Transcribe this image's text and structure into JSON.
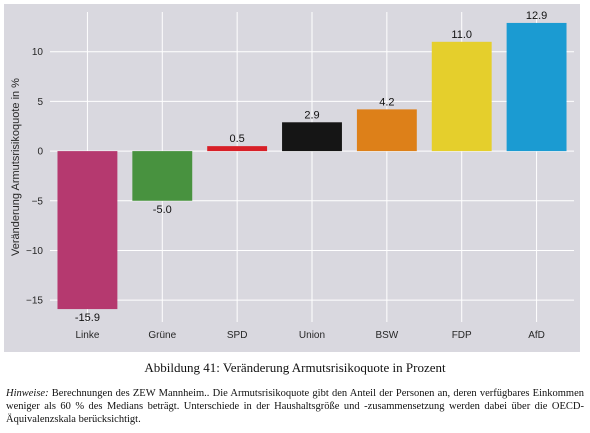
{
  "chart_data": {
    "type": "bar",
    "categories": [
      "Linke",
      "Grüne",
      "SPD",
      "Union",
      "BSW",
      "FDP",
      "AfD"
    ],
    "values": [
      -15.9,
      -5.0,
      0.5,
      2.9,
      4.2,
      11.0,
      12.9
    ],
    "value_labels": [
      "-15.9",
      "-5.0",
      "0.5",
      "2.9",
      "4.2",
      "11.0",
      "12.9"
    ],
    "colors": [
      "#b5396f",
      "#48923f",
      "#d81f27",
      "#151515",
      "#dd8019",
      "#e5cf2c",
      "#1b9bd2"
    ],
    "title": "",
    "xlabel": "",
    "ylabel": "Veränderung Armutsrisikoquote in %",
    "ylim": [
      -17.2,
      14.0
    ],
    "yticks": [
      -15,
      -10,
      -5,
      0,
      5,
      10
    ],
    "ytick_labels": [
      "−15",
      "−10",
      "−5",
      "0",
      "5",
      "10"
    ],
    "grid": true
  },
  "caption": "Abbildung 41: Veränderung Armutsrisikoquote in Prozent",
  "note": {
    "lead": "Hinweise:",
    "text": " Berechnungen des ZEW Mannheim.. Die Armutsrisikoquote gibt den Anteil der Personen an, deren verfügbares Einkommen weniger als 60 % des Medians beträgt. Unterschiede in der Haushaltsgröße und -zusammensetzung werden dabei über die OECD-Äquivalenzskala berücksichtigt."
  }
}
